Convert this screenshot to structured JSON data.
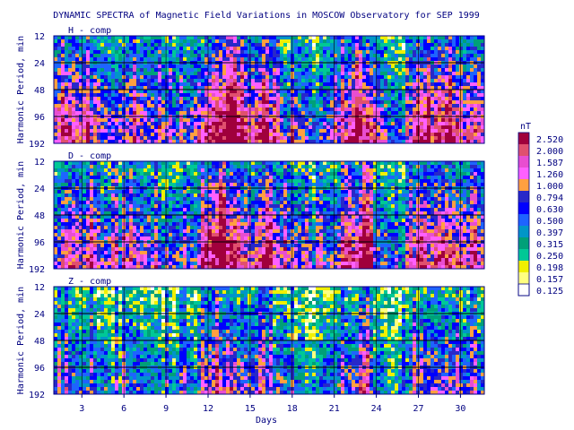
{
  "chart_data": {
    "type": "heatmap",
    "title": "DYNAMIC SPECTRA of Magnetic Field Variations in MOSCOW Observatory for SEP 1999",
    "xlabel": "Days",
    "ylabel": "Harmonic Period, min",
    "x_range": [
      1,
      31
    ],
    "x_ticks": [
      "3",
      "6",
      "9",
      "12",
      "15",
      "18",
      "21",
      "24",
      "27",
      "30"
    ],
    "y_ticks": [
      "12",
      "24",
      "48",
      "96",
      "192"
    ],
    "y_scale": "log2",
    "colorbar": {
      "unit": "nT",
      "levels": [
        "2.520",
        "2.000",
        "1.587",
        "1.260",
        "1.000",
        "0.794",
        "0.630",
        "0.500",
        "0.397",
        "0.315",
        "0.250",
        "0.198",
        "0.157",
        "0.125"
      ],
      "colors": [
        "#a0003c",
        "#e0506e",
        "#e84ed0",
        "#ff60ff",
        "#ffa040",
        "#2828c8",
        "#0000ff",
        "#1e64ff",
        "#0096c8",
        "#00a078",
        "#00c896",
        "#f0f000",
        "#ffff80",
        "#ffffff"
      ]
    },
    "series": [
      {
        "name": "H - comp",
        "activity_by_day": [
          0.7,
          0.78,
          0.75,
          0.72,
          0.55,
          0.62,
          0.7,
          0.6,
          0.55,
          0.5,
          0.58,
          0.88,
          0.95,
          0.9,
          0.72,
          0.78,
          0.62,
          0.58,
          0.55,
          0.52,
          0.6,
          0.72,
          0.95,
          0.7,
          0.5,
          0.45,
          0.9,
          0.8,
          0.85,
          0.75,
          0.72
        ]
      },
      {
        "name": "D - comp",
        "activity_by_day": [
          0.65,
          0.72,
          0.72,
          0.7,
          0.55,
          0.62,
          0.65,
          0.55,
          0.52,
          0.5,
          0.55,
          0.85,
          0.95,
          0.88,
          0.7,
          0.82,
          0.65,
          0.6,
          0.55,
          0.5,
          0.55,
          0.68,
          0.92,
          0.62,
          0.45,
          0.4,
          0.88,
          0.78,
          0.82,
          0.7,
          0.65
        ]
      },
      {
        "name": "Z - comp",
        "activity_by_day": [
          0.45,
          0.5,
          0.48,
          0.48,
          0.42,
          0.45,
          0.5,
          0.42,
          0.4,
          0.38,
          0.42,
          0.62,
          0.72,
          0.68,
          0.52,
          0.58,
          0.5,
          0.45,
          0.42,
          0.4,
          0.45,
          0.5,
          0.78,
          0.45,
          0.32,
          0.3,
          0.65,
          0.55,
          0.6,
          0.5,
          0.48
        ]
      }
    ]
  }
}
